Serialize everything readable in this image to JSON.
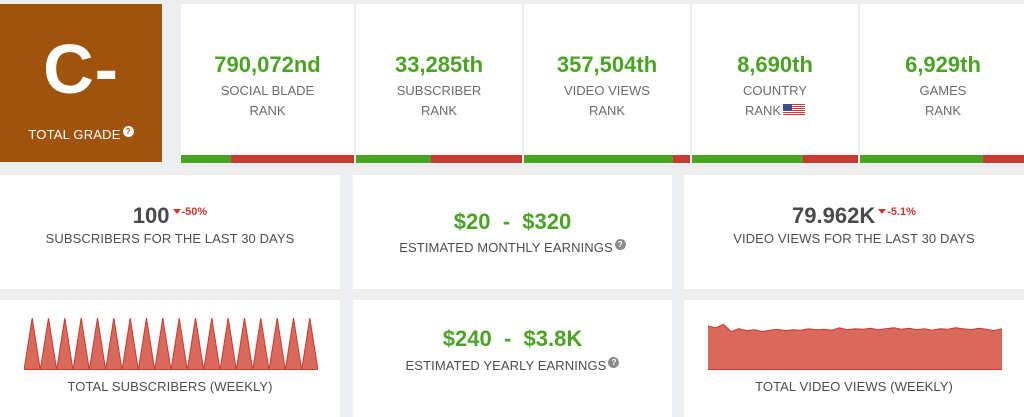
{
  "grade": {
    "letter": "C-",
    "label": "TOTAL GRADE",
    "help": "?"
  },
  "ranks": [
    {
      "value": "790,072nd",
      "line1": "SOCIAL BLADE",
      "line2": "RANK",
      "bar": 0.29
    },
    {
      "value": "33,285th",
      "line1": "SUBSCRIBER",
      "line2": "RANK",
      "bar": 0.45
    },
    {
      "value": "357,504th",
      "line1": "VIDEO VIEWS",
      "line2": "RANK",
      "bar": 0.9
    },
    {
      "value": "8,690th",
      "line1": "COUNTRY",
      "line2": "RANK",
      "bar": 0.67,
      "flag": "us-flag-icon"
    },
    {
      "value": "6,929th",
      "line1": "GAMES",
      "line2": "RANK",
      "bar": 0.74
    }
  ],
  "stats": {
    "subs30": {
      "value": "100",
      "change": "-50%",
      "caption": "SUBSCRIBERS FOR THE LAST 30 DAYS"
    },
    "monthly": {
      "low": "$20",
      "sep": "-",
      "high": "$320",
      "caption": "ESTIMATED MONTHLY EARNINGS",
      "help": "?"
    },
    "views30": {
      "value": "79.962K",
      "change": "-5.1%",
      "caption": "VIDEO VIEWS FOR THE LAST 30 DAYS"
    },
    "yearly": {
      "low": "$240",
      "sep": "-",
      "high": "$3.8K",
      "caption": "ESTIMATED YEARLY EARNINGS",
      "help": "?"
    }
  },
  "charts": {
    "subs_caption": "TOTAL SUBSCRIBERS (WEEKLY)",
    "views_caption": "TOTAL VIDEO VIEWS (WEEKLY)"
  },
  "colors": {
    "grade": "#a0530c",
    "green": "#4aa324",
    "red": "#c93a2e",
    "chart": "#d9695a"
  },
  "chart_data": [
    {
      "type": "area",
      "name": "subscribers-weekly",
      "values": [
        0,
        1,
        0,
        1,
        0,
        1,
        0,
        1,
        0,
        1,
        0,
        1,
        0,
        1,
        0,
        1,
        0,
        1,
        0,
        1,
        0,
        1,
        0,
        1,
        0,
        1,
        0,
        1,
        0,
        1,
        0,
        1,
        0,
        1,
        0,
        1,
        0
      ],
      "caption": "TOTAL SUBSCRIBERS (WEEKLY)"
    },
    {
      "type": "area",
      "name": "views-weekly",
      "values": [
        0.92,
        0.88,
        0.95,
        0.8,
        0.86,
        0.82,
        0.84,
        0.8,
        0.83,
        0.85,
        0.82,
        0.84,
        0.83,
        0.86,
        0.84,
        0.85,
        0.83,
        0.88,
        0.84,
        0.86,
        0.85,
        0.87,
        0.84,
        0.86,
        0.88,
        0.85,
        0.87,
        0.84,
        0.86,
        0.83,
        0.86,
        0.85,
        0.88,
        0.86,
        0.84,
        0.87,
        0.85,
        0.82,
        0.86
      ],
      "caption": "TOTAL VIDEO VIEWS (WEEKLY)"
    }
  ]
}
